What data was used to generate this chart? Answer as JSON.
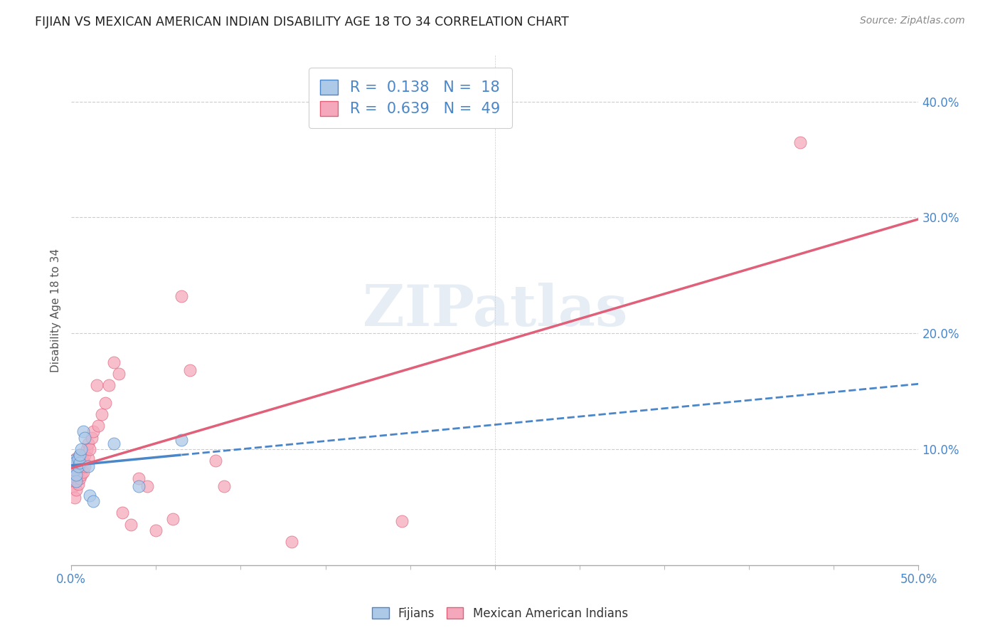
{
  "title": "FIJIAN VS MEXICAN AMERICAN INDIAN DISABILITY AGE 18 TO 34 CORRELATION CHART",
  "source": "Source: ZipAtlas.com",
  "ylabel": "Disability Age 18 to 34",
  "xlim": [
    0.0,
    0.5
  ],
  "ylim": [
    0.0,
    0.44
  ],
  "ytick_positions": [
    0.1,
    0.2,
    0.3,
    0.4
  ],
  "ytick_labels": [
    "10.0%",
    "20.0%",
    "30.0%",
    "40.0%"
  ],
  "xtick_positions": [
    0.0,
    0.5
  ],
  "xtick_labels": [
    "0.0%",
    "50.0%"
  ],
  "legend_labels": [
    "Fijians",
    "Mexican American Indians"
  ],
  "r_fijian": 0.138,
  "n_fijian": 18,
  "r_mexican": 0.639,
  "n_mexican": 49,
  "fijian_color": "#adc9e8",
  "mexican_color": "#f5a8bc",
  "fijian_line_color": "#4a86c8",
  "mexican_line_color": "#e0607a",
  "background_color": "#ffffff",
  "grid_color": "#cccccc",
  "axis_color": "#4a86c8",
  "watermark": "ZIPatlas",
  "fijian_x": [
    0.001,
    0.002,
    0.002,
    0.003,
    0.003,
    0.004,
    0.004,
    0.005,
    0.005,
    0.006,
    0.007,
    0.008,
    0.01,
    0.011,
    0.013,
    0.025,
    0.04,
    0.065
  ],
  "fijian_y": [
    0.09,
    0.082,
    0.088,
    0.072,
    0.078,
    0.085,
    0.092,
    0.088,
    0.095,
    0.1,
    0.115,
    0.11,
    0.085,
    0.06,
    0.055,
    0.105,
    0.068,
    0.108
  ],
  "mexican_x": [
    0.001,
    0.001,
    0.001,
    0.002,
    0.002,
    0.002,
    0.002,
    0.003,
    0.003,
    0.003,
    0.003,
    0.004,
    0.004,
    0.004,
    0.005,
    0.005,
    0.005,
    0.006,
    0.006,
    0.007,
    0.007,
    0.008,
    0.008,
    0.009,
    0.01,
    0.01,
    0.011,
    0.012,
    0.013,
    0.015,
    0.016,
    0.018,
    0.02,
    0.022,
    0.025,
    0.028,
    0.03,
    0.035,
    0.04,
    0.045,
    0.05,
    0.06,
    0.065,
    0.07,
    0.085,
    0.09,
    0.13,
    0.195,
    0.43
  ],
  "mexican_y": [
    0.068,
    0.075,
    0.082,
    0.058,
    0.072,
    0.08,
    0.088,
    0.065,
    0.075,
    0.085,
    0.092,
    0.07,
    0.08,
    0.09,
    0.075,
    0.085,
    0.095,
    0.078,
    0.092,
    0.08,
    0.09,
    0.085,
    0.095,
    0.1,
    0.092,
    0.105,
    0.1,
    0.11,
    0.115,
    0.155,
    0.12,
    0.13,
    0.14,
    0.155,
    0.175,
    0.165,
    0.045,
    0.035,
    0.075,
    0.068,
    0.03,
    0.04,
    0.232,
    0.168,
    0.09,
    0.068,
    0.02,
    0.038,
    0.365
  ]
}
